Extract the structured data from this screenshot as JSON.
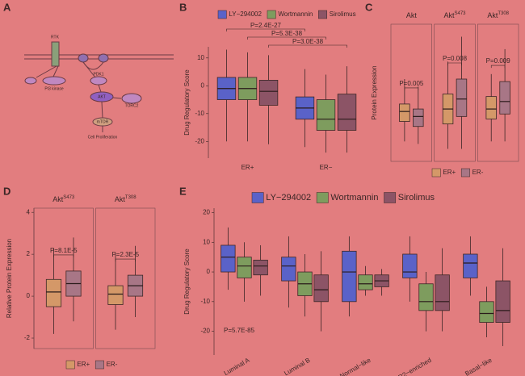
{
  "pathway": {
    "panel": "A",
    "nodes": [
      {
        "label": "RTK"
      },
      {
        "label": "PI3 kinase"
      },
      {
        "label": "PDK1"
      },
      {
        "label": "AKT"
      },
      {
        "label": "TORC2"
      },
      {
        "label": "mTOR"
      },
      {
        "label": "Cell Proliferation"
      }
    ]
  },
  "chart_data": [
    {
      "panel": "B",
      "type": "grouped_box",
      "ylabel": "Drug Regulatory Score",
      "categories": [
        "ER+",
        "ER−"
      ],
      "series": [
        {
          "name": "LY−294002",
          "color": "#5a62c8",
          "boxes": [
            {
              "min": -20,
              "q1": -5,
              "median": -1,
              "q3": 3,
              "max": 13
            },
            {
              "min": -22,
              "q1": -12,
              "median": -8,
              "q3": -4,
              "max": 6
            }
          ]
        },
        {
          "name": "Wortmannin",
          "color": "#7e9c5e",
          "boxes": [
            {
              "min": -20,
              "q1": -5,
              "median": -1,
              "q3": 3,
              "max": 12
            },
            {
              "min": -24,
              "q1": -16,
              "median": -12,
              "q3": -5,
              "max": 4
            }
          ]
        },
        {
          "name": "Sirolimus",
          "color": "#8c5466",
          "boxes": [
            {
              "min": -21,
              "q1": -7,
              "median": -2,
              "q3": 2,
              "max": 11
            },
            {
              "min": -24,
              "q1": -16,
              "median": -12,
              "q3": -3,
              "max": 7
            }
          ]
        }
      ],
      "ylim": [
        -26,
        14
      ],
      "yticks": [
        -20,
        -10,
        0,
        10
      ],
      "pvalues": [
        "P=2.4E-27",
        "P=5.3E-38",
        "P=3.0E-38"
      ]
    },
    {
      "panel": "C",
      "type": "faceted_box",
      "ylabel": "Protein Expression",
      "series": [
        {
          "name": "ER+",
          "color": "#d49868"
        },
        {
          "name": "ER-",
          "color": "#a87686"
        }
      ],
      "ylim": [
        -2,
        3.5
      ],
      "facets": [
        {
          "title": "Akt",
          "pvalue": "P=0.005",
          "boxes": [
            {
              "min": -1.2,
              "q1": -0.4,
              "median": 0,
              "q3": 0.3,
              "max": 1.3
            },
            {
              "min": -1.3,
              "q1": -0.6,
              "median": -0.2,
              "q3": 0.1,
              "max": 1
            }
          ]
        },
        {
          "title": "Akt",
          "title_sup": "S473",
          "pvalue": "P=0.008",
          "boxes": [
            {
              "min": -1.5,
              "q1": -0.5,
              "median": 0.1,
              "q3": 0.7,
              "max": 2
            },
            {
              "min": -1.5,
              "q1": -0.2,
              "median": 0.5,
              "q3": 1.3,
              "max": 3
            }
          ]
        },
        {
          "title": "Akt",
          "title_sup": "T308",
          "pvalue": "P=0.009",
          "boxes": [
            {
              "min": -1.2,
              "q1": -0.3,
              "median": 0.1,
              "q3": 0.6,
              "max": 1.5
            },
            {
              "min": -1.2,
              "q1": -0.1,
              "median": 0.4,
              "q3": 1.2,
              "max": 2.5
            }
          ]
        }
      ]
    },
    {
      "panel": "D",
      "type": "faceted_box",
      "ylabel": "Relative Protein Expression",
      "series": [
        {
          "name": "ER+",
          "color": "#d49868"
        },
        {
          "name": "ER-",
          "color": "#a87686"
        }
      ],
      "ylim": [
        -2.5,
        4.2
      ],
      "yticks": [
        -2,
        0,
        2,
        4
      ],
      "facets": [
        {
          "title": "Akt",
          "title_sup": "S473",
          "pvalue": "P=8.1E-5",
          "boxes": [
            {
              "min": -1.8,
              "q1": -0.5,
              "median": 0.2,
              "q3": 0.8,
              "max": 2.3
            },
            {
              "min": -1.2,
              "q1": 0,
              "median": 0.6,
              "q3": 1.2,
              "max": 2.8
            }
          ]
        },
        {
          "title": "Akt",
          "title_sup": "T308",
          "pvalue": "P=2.3E-5",
          "boxes": [
            {
              "min": -1.6,
              "q1": -0.4,
              "median": 0.1,
              "q3": 0.5,
              "max": 2
            },
            {
              "min": -1,
              "q1": 0,
              "median": 0.5,
              "q3": 1,
              "max": 2.4
            }
          ]
        }
      ]
    },
    {
      "panel": "E",
      "type": "grouped_box",
      "ylabel": "Drug Regulatory Score",
      "categories": [
        "Luminal A",
        "Luminal B",
        "Normal−like",
        "HER2−enriched",
        "Basal−like"
      ],
      "series": [
        {
          "name": "LY−294002",
          "color": "#5a62c8",
          "boxes": [
            {
              "min": -6,
              "q1": 0,
              "median": 5,
              "q3": 9,
              "max": 15
            },
            {
              "min": -12,
              "q1": -3,
              "median": 2,
              "q3": 5,
              "max": 12
            },
            {
              "min": -15,
              "q1": -10,
              "median": 0,
              "q3": 7,
              "max": 12
            },
            {
              "min": -10,
              "q1": -2,
              "median": 0,
              "q3": 6,
              "max": 12
            },
            {
              "min": -8,
              "q1": -2,
              "median": 3,
              "q3": 6,
              "max": 12
            }
          ]
        },
        {
          "name": "Wortmannin",
          "color": "#7e9c5e",
          "boxes": [
            {
              "min": -10,
              "q1": -2,
              "median": 2,
              "q3": 5,
              "max": 10
            },
            {
              "min": -15,
              "q1": -8,
              "median": -4,
              "q3": 0,
              "max": 6
            },
            {
              "min": -8,
              "q1": -6,
              "median": -4,
              "q3": -1,
              "max": 2
            },
            {
              "min": -20,
              "q1": -13,
              "median": -10,
              "q3": -4,
              "max": 0
            },
            {
              "min": -22,
              "q1": -17,
              "median": -14,
              "q3": -10,
              "max": -5
            }
          ]
        },
        {
          "name": "Sirolimus",
          "color": "#8c5466",
          "boxes": [
            {
              "min": -8,
              "q1": -1,
              "median": 2,
              "q3": 4,
              "max": 9
            },
            {
              "min": -20,
              "q1": -10,
              "median": -6,
              "q3": -1,
              "max": 7
            },
            {
              "min": -8,
              "q1": -5,
              "median": -3,
              "q3": -1,
              "max": 1
            },
            {
              "min": -20,
              "q1": -13,
              "median": -10,
              "q3": -1,
              "max": 8
            },
            {
              "min": -25,
              "q1": -17,
              "median": -13,
              "q3": -3,
              "max": 8
            }
          ]
        }
      ],
      "ylim": [
        -28,
        21.5
      ],
      "yticks": [
        -20,
        -10,
        0,
        10,
        20
      ],
      "pvalues": [
        "P=5.7E-85"
      ]
    }
  ]
}
